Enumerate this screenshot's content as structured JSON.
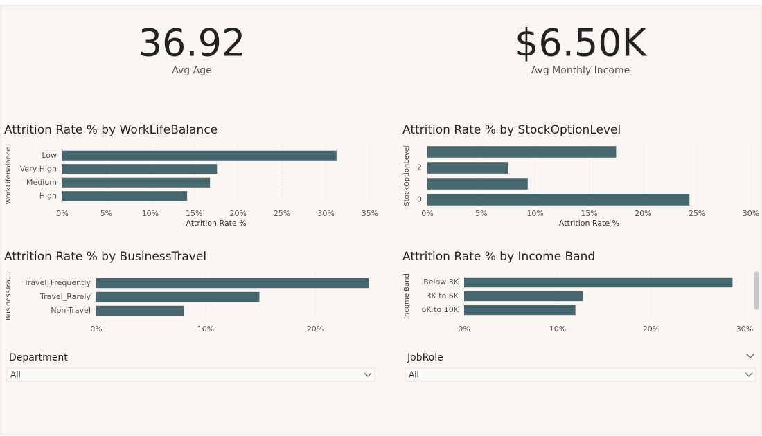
{
  "kpis": [
    {
      "value": "36.92",
      "label": "Avg Age"
    },
    {
      "value": "$6.50K",
      "label": "Avg Monthly Income"
    }
  ],
  "chart_data": [
    {
      "type": "bar",
      "orientation": "horizontal",
      "title": "Attrition Rate % by WorkLifeBalance",
      "y_label": "WorkLifeBalance",
      "x_label": "Attrition Rate %",
      "categories": [
        "Low",
        "Very High",
        "Medium",
        "High"
      ],
      "values": [
        31.2,
        17.6,
        16.8,
        14.2
      ],
      "color": "#47676e",
      "grid": true,
      "xlim": [
        0,
        35
      ],
      "xticks": [
        {
          "value": 0,
          "label": "0%"
        },
        {
          "value": 5,
          "label": "5%"
        },
        {
          "value": 10,
          "label": "10%"
        },
        {
          "value": 15,
          "label": "15%"
        },
        {
          "value": 20,
          "label": "20%"
        },
        {
          "value": 25,
          "label": "25%"
        },
        {
          "value": 30,
          "label": "30%"
        },
        {
          "value": 35,
          "label": "35%"
        }
      ]
    },
    {
      "type": "bar",
      "orientation": "horizontal",
      "title": "Attrition Rate % by StockOptionLevel",
      "y_label": "StockOptionLevel",
      "x_label": "Attrition Rate %",
      "categories": [
        null,
        "2",
        null,
        "0"
      ],
      "values": [
        17.5,
        7.5,
        9.3,
        24.3
      ],
      "color": "#47676e",
      "grid": true,
      "xlim": [
        0,
        30
      ],
      "xticks": [
        {
          "value": 0,
          "label": "0%"
        },
        {
          "value": 5,
          "label": "5%"
        },
        {
          "value": 10,
          "label": "10%"
        },
        {
          "value": 15,
          "label": "15%"
        },
        {
          "value": 20,
          "label": "20%"
        },
        {
          "value": 25,
          "label": "25%"
        },
        {
          "value": 30,
          "label": "30%"
        }
      ]
    },
    {
      "type": "bar",
      "orientation": "horizontal",
      "title": "Attrition Rate % by BusinessTravel",
      "y_label": "BusinessTra...",
      "categories": [
        "Travel_Frequently",
        "Travel_Rarely",
        "Non-Travel"
      ],
      "values": [
        24.9,
        14.9,
        8.0
      ],
      "color": "#47676e",
      "grid": true,
      "xlim": [
        0,
        25
      ],
      "xticks": [
        {
          "value": 0,
          "label": "0%"
        },
        {
          "value": 10,
          "label": "10%"
        },
        {
          "value": 20,
          "label": "20%"
        }
      ]
    },
    {
      "type": "bar",
      "orientation": "horizontal",
      "title": "Attrition Rate % by Income Band",
      "y_label": "Income Band",
      "categories": [
        "Below 3K",
        "3K to 6K",
        "6K to 10K"
      ],
      "values": [
        28.7,
        12.7,
        11.9
      ],
      "color": "#47676e",
      "grid": true,
      "xlim": [
        0,
        30
      ],
      "xticks": [
        {
          "value": 0,
          "label": "0%"
        },
        {
          "value": 10,
          "label": "10%"
        },
        {
          "value": 20,
          "label": "20%"
        },
        {
          "value": 30,
          "label": "30%"
        }
      ]
    }
  ],
  "slicers": [
    {
      "label": "Department",
      "selection": "All"
    },
    {
      "label": "JobRole",
      "selection": "All"
    }
  ]
}
